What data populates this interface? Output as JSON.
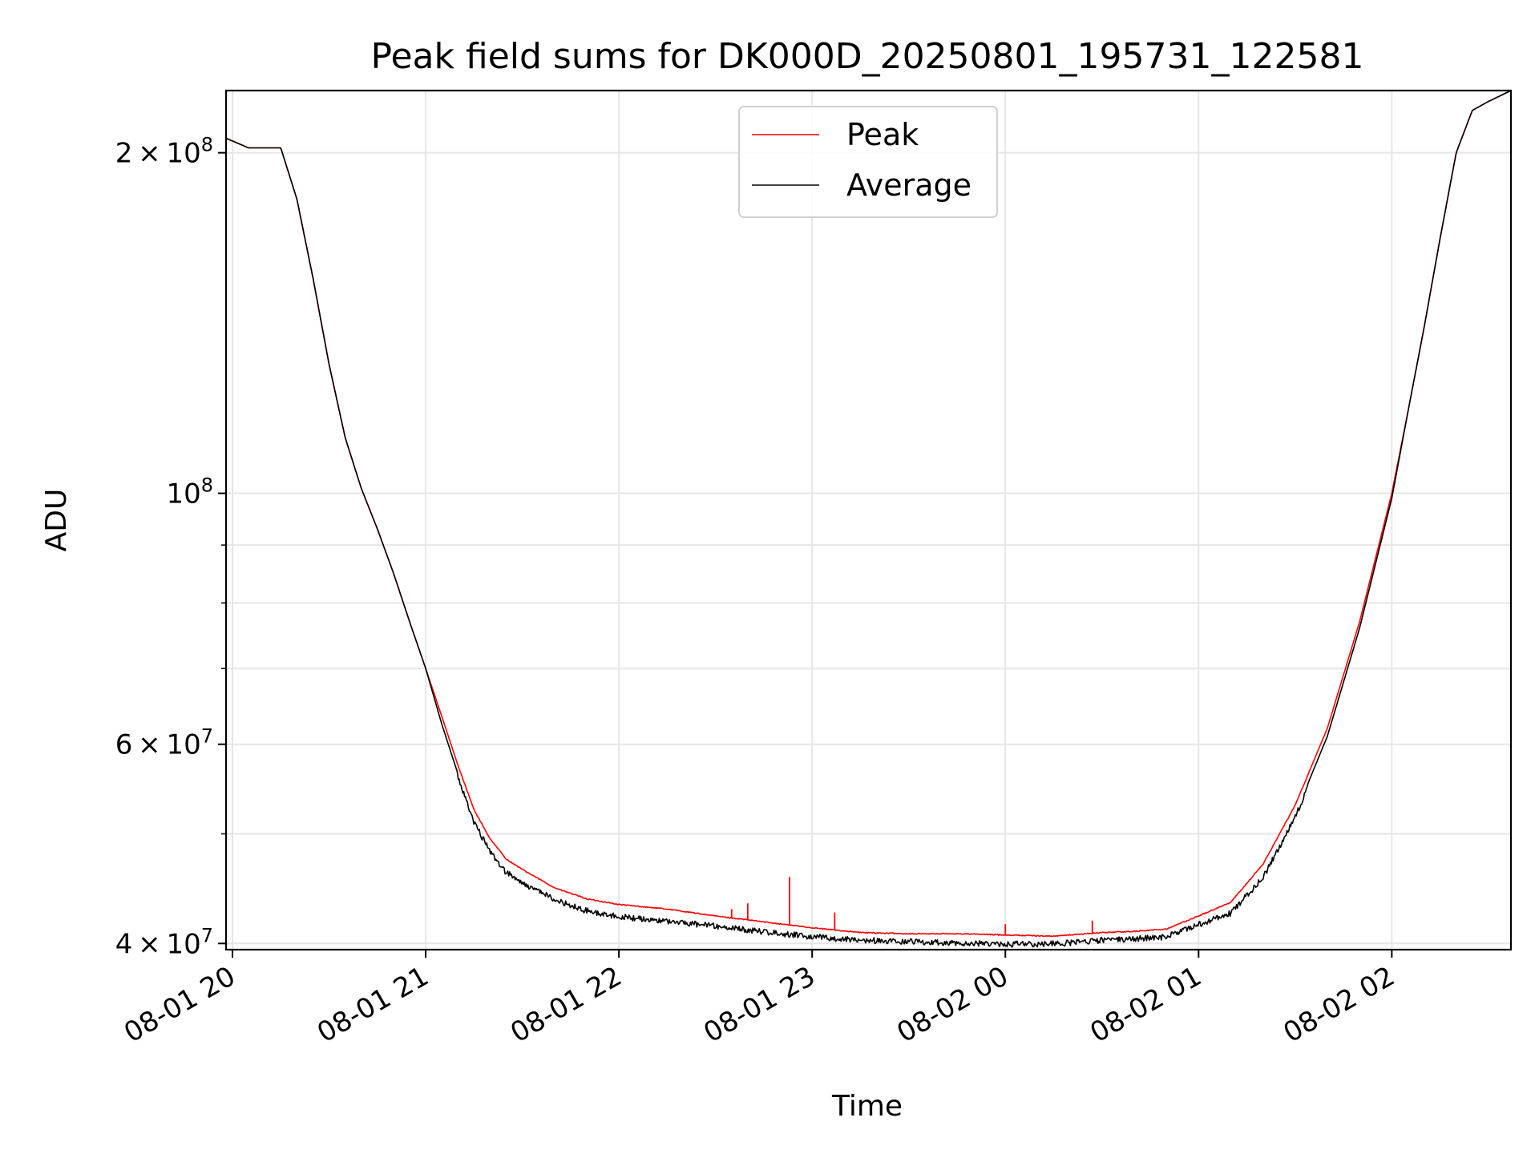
{
  "chart_data": {
    "type": "line",
    "title": "Peak field sums for DK000D_20250801_195731_122581",
    "xlabel": "Time",
    "ylabel": "ADU",
    "yscale": "log",
    "xlim": [
      "2025-08-01 19:58",
      "2025-08-02 02:37"
    ],
    "ylim": [
      39500000,
      227000000
    ],
    "grid": true,
    "legend_placement": "upper center",
    "x_ticks": [
      "08-01 20",
      "08-01 21",
      "08-01 22",
      "08-01 23",
      "08-02 00",
      "08-02 01",
      "08-02 02"
    ],
    "x_tick_values": [
      "2025-08-01 20:00",
      "2025-08-01 21:00",
      "2025-08-01 22:00",
      "2025-08-01 23:00",
      "2025-08-02 00:00",
      "2025-08-02 01:00",
      "2025-08-02 02:00"
    ],
    "y_ticks": [
      {
        "value": 40000000,
        "mantissa": "4",
        "exp": "7"
      },
      {
        "value": 60000000,
        "mantissa": "6",
        "exp": "7"
      },
      {
        "value": 100000000,
        "mantissa": "",
        "exp": "8"
      },
      {
        "value": 200000000,
        "mantissa": "2",
        "exp": "8"
      }
    ],
    "y_minor_ticks": [
      50000000,
      70000000,
      80000000,
      90000000
    ],
    "x": [
      "2025-08-01 19:58",
      "2025-08-01 20:05",
      "2025-08-01 20:15",
      "2025-08-01 20:20",
      "2025-08-01 20:25",
      "2025-08-01 20:30",
      "2025-08-01 20:35",
      "2025-08-01 20:40",
      "2025-08-01 20:45",
      "2025-08-01 20:50",
      "2025-08-01 20:55",
      "2025-08-01 21:00",
      "2025-08-01 21:05",
      "2025-08-01 21:10",
      "2025-08-01 21:15",
      "2025-08-01 21:20",
      "2025-08-01 21:25",
      "2025-08-01 21:30",
      "2025-08-01 21:40",
      "2025-08-01 21:50",
      "2025-08-01 22:00",
      "2025-08-01 22:15",
      "2025-08-01 22:30",
      "2025-08-01 22:45",
      "2025-08-01 23:00",
      "2025-08-01 23:15",
      "2025-08-01 23:30",
      "2025-08-01 23:45",
      "2025-08-02 00:00",
      "2025-08-02 00:15",
      "2025-08-02 00:30",
      "2025-08-02 00:40",
      "2025-08-02 00:50",
      "2025-08-02 01:00",
      "2025-08-02 01:10",
      "2025-08-02 01:20",
      "2025-08-02 01:30",
      "2025-08-02 01:40",
      "2025-08-02 01:50",
      "2025-08-02 02:00",
      "2025-08-02 02:05",
      "2025-08-02 02:10",
      "2025-08-02 02:15",
      "2025-08-02 02:20",
      "2025-08-02 02:25",
      "2025-08-02 02:30",
      "2025-08-02 02:37"
    ],
    "series": [
      {
        "name": "Peak",
        "color": "#ff0000",
        "values": [
          206000000,
          202000000,
          202000000,
          182000000,
          155000000,
          130000000,
          112000000,
          101000000,
          93000000,
          85000000,
          77000000,
          70000000,
          63500000,
          57500000,
          52500000,
          49500000,
          47500000,
          46500000,
          44800000,
          43800000,
          43300000,
          42900000,
          42300000,
          41800000,
          41300000,
          40900000,
          40800000,
          40800000,
          40700000,
          40600000,
          40900000,
          41000000,
          41200000,
          42300000,
          43500000,
          47000000,
          53000000,
          62000000,
          77000000,
          100000000,
          118000000,
          140000000,
          168000000,
          200000000,
          218000000,
          222000000,
          227000000
        ],
        "spikes": [
          {
            "x": "2025-08-01 22:35",
            "y": 42900000
          },
          {
            "x": "2025-08-01 22:40",
            "y": 43400000
          },
          {
            "x": "2025-08-01 22:53",
            "y": 45800000
          },
          {
            "x": "2025-08-01 23:07",
            "y": 42600000
          },
          {
            "x": "2025-08-02 00:00",
            "y": 41600000
          },
          {
            "x": "2025-08-02 00:27",
            "y": 41900000
          }
        ]
      },
      {
        "name": "Average",
        "color": "#000000",
        "values": [
          206000000,
          202000000,
          202000000,
          182000000,
          155000000,
          130000000,
          112000000,
          101000000,
          93000000,
          85000000,
          77000000,
          70000000,
          62500000,
          56500000,
          51500000,
          48500000,
          46500000,
          45500000,
          44000000,
          43000000,
          42500000,
          42100000,
          41700000,
          41200000,
          40800000,
          40500000,
          40400000,
          40300000,
          40200000,
          40200000,
          40500000,
          40600000,
          40800000,
          41800000,
          42800000,
          46000000,
          52000000,
          61000000,
          76000000,
          99000000,
          118000000,
          140000000,
          168000000,
          200000000,
          218000000,
          222000000,
          227000000
        ],
        "noise_amplitude": 0.012
      }
    ]
  }
}
